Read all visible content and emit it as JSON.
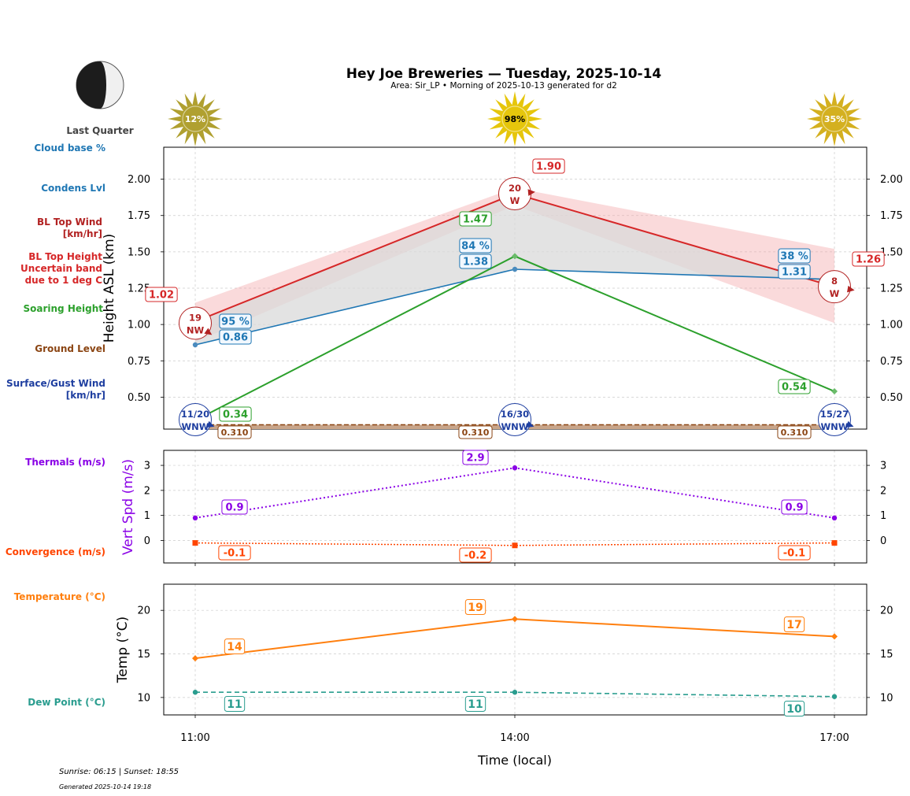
{
  "header": {
    "title": "Hey Joe Breweries — Tuesday, 2025-10-14",
    "subtitle": "Area: Sir_LP • Morning of 2025-10-13 generated for d2",
    "moon_phase": "Last Quarter"
  },
  "footer": {
    "sun_times": "Sunrise: 06:15 | Sunset: 18:55",
    "generated": "Generated 2025-10-14 19:18"
  },
  "side_labels": {
    "cloud_base": "Cloud base %",
    "condens": "Condens Lvl",
    "bl_wind_1": "BL Top Wind",
    "bl_wind_2": "[km/hr]",
    "bl_band_1": "BL Top Height",
    "bl_band_2": "Uncertain band",
    "bl_band_3": "due to 1 deg C",
    "soaring": "Soaring Height",
    "ground": "Ground Level",
    "surface_1": "Surface/Gust Wind",
    "surface_2": "[km/hr]",
    "thermals": "Thermals (m/s)",
    "convergence": "Convergence (m/s)",
    "temperature": "Temperature (°C)",
    "dew_point": "Dew Point (°C)"
  },
  "colors": {
    "bl_top": "#d62728",
    "bl_band": "#f4a6aa",
    "condens": "#1f77b4",
    "soaring": "#2ca02c",
    "ground": "#8b4513",
    "surface_wind": "#1f3fa0",
    "thermals": "#8a00e6",
    "convergence": "#ff4500",
    "temperature": "#ff7f0e",
    "dew_point": "#2a9d8f",
    "cloud_fill": "#d9d9d9"
  },
  "chart_data": [
    {
      "type": "line",
      "id": "height",
      "ylabel": "Height ASL (km)",
      "ylim": [
        0.28,
        2.22
      ],
      "yticks": [
        0.5,
        0.75,
        1.0,
        1.25,
        1.5,
        1.75,
        2.0
      ],
      "ytick_labels": [
        "0.50",
        "0.75",
        "1.00",
        "1.25",
        "1.50",
        "1.75",
        "2.00"
      ],
      "x": [
        "11:00",
        "14:00",
        "17:00"
      ],
      "sun_cover": [
        "12%",
        "98%",
        "35%"
      ],
      "series": [
        {
          "name": "BL Top Height",
          "values": [
            1.02,
            1.9,
            1.26
          ],
          "labels": [
            "1.02",
            "1.90",
            "1.26"
          ]
        },
        {
          "name": "BL Top Uncertain band upper",
          "values": [
            1.15,
            1.94,
            1.52
          ]
        },
        {
          "name": "BL Top Uncertain band lower",
          "values": [
            0.88,
            1.82,
            1.01
          ]
        },
        {
          "name": "Condens Lvl",
          "values": [
            0.86,
            1.38,
            1.31
          ],
          "labels": [
            "0.86",
            "1.38",
            "1.31"
          ]
        },
        {
          "name": "Cloud base %",
          "labels": [
            "95 %",
            "84 %",
            "38 %"
          ]
        },
        {
          "name": "Soaring Height",
          "values": [
            0.34,
            1.47,
            0.54
          ],
          "labels": [
            "0.34",
            "1.47",
            "0.54"
          ]
        },
        {
          "name": "Ground Level",
          "values": [
            0.31,
            0.31,
            0.31
          ],
          "labels": [
            "0.310",
            "0.310",
            "0.310"
          ]
        }
      ],
      "bl_top_wind": [
        {
          "speed": "19",
          "dir": "NW"
        },
        {
          "speed": "20",
          "dir": "W"
        },
        {
          "speed": "8",
          "dir": "W"
        }
      ],
      "surface_wind": [
        {
          "speed": "11/20",
          "dir": "WNW"
        },
        {
          "speed": "16/30",
          "dir": "WNW"
        },
        {
          "speed": "15/27",
          "dir": "WNW"
        }
      ]
    },
    {
      "type": "line",
      "id": "vertical",
      "ylabel": "Vert Spd (m/s)",
      "ylim": [
        -0.9,
        3.6
      ],
      "yticks": [
        0,
        1,
        2,
        3
      ],
      "ytick_labels": [
        "0",
        "1",
        "2",
        "3"
      ],
      "x": [
        "11:00",
        "14:00",
        "17:00"
      ],
      "series": [
        {
          "name": "Thermals (m/s)",
          "values": [
            0.9,
            2.9,
            0.9
          ],
          "labels": [
            "0.9",
            "2.9",
            "0.9"
          ]
        },
        {
          "name": "Convergence (m/s)",
          "values": [
            -0.1,
            -0.2,
            -0.1
          ],
          "labels": [
            "-0.1",
            "-0.2",
            "-0.1"
          ]
        }
      ]
    },
    {
      "type": "line",
      "id": "temperature",
      "ylabel": "Temp (°C)",
      "xlabel": "Time (local)",
      "ylim": [
        8,
        23
      ],
      "yticks": [
        10,
        15,
        20
      ],
      "ytick_labels": [
        "10",
        "15",
        "20"
      ],
      "x": [
        "11:00",
        "14:00",
        "17:00"
      ],
      "series": [
        {
          "name": "Temperature (°C)",
          "values": [
            14.5,
            19,
            17
          ],
          "labels": [
            "14",
            "19",
            "17"
          ]
        },
        {
          "name": "Dew Point (°C)",
          "values": [
            10.6,
            10.6,
            10.1
          ],
          "labels": [
            "11",
            "11",
            "10"
          ]
        }
      ]
    }
  ]
}
